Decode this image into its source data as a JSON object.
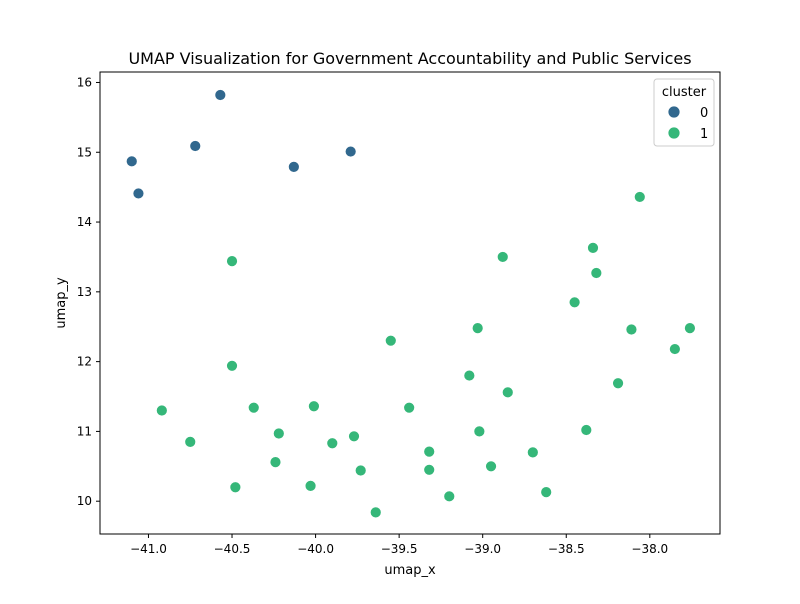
{
  "chart_data": {
    "type": "scatter",
    "title": "UMAP Visualization for Government Accountability and Public Services",
    "xlabel": "umap_x",
    "ylabel": "umap_y",
    "xlim": [
      -41.29,
      -37.58
    ],
    "ylim": [
      9.53,
      16.15
    ],
    "xticks": [
      -41.0,
      -40.5,
      -40.0,
      -39.5,
      -39.0,
      -38.5,
      -38.0
    ],
    "xtick_labels": [
      "−41.0",
      "−40.5",
      "−40.0",
      "−39.5",
      "−39.0",
      "−38.5",
      "−38.0"
    ],
    "yticks": [
      10,
      11,
      12,
      13,
      14,
      15,
      16
    ],
    "ytick_labels": [
      "10",
      "11",
      "12",
      "13",
      "14",
      "15",
      "16"
    ],
    "grid": false,
    "legend": {
      "title": "cluster",
      "placement": "top-right"
    },
    "series": [
      {
        "name": "0",
        "color": "#31688e",
        "points": [
          [
            -41.1,
            14.87
          ],
          [
            -41.06,
            14.41
          ],
          [
            -40.72,
            15.09
          ],
          [
            -40.57,
            15.82
          ],
          [
            -40.13,
            14.79
          ],
          [
            -39.79,
            15.01
          ]
        ]
      },
      {
        "name": "1",
        "color": "#35b779",
        "points": [
          [
            -40.92,
            11.3
          ],
          [
            -40.75,
            10.85
          ],
          [
            -40.5,
            13.44
          ],
          [
            -40.5,
            11.94
          ],
          [
            -40.48,
            10.2
          ],
          [
            -40.37,
            11.34
          ],
          [
            -40.24,
            10.56
          ],
          [
            -40.22,
            10.97
          ],
          [
            -40.01,
            11.36
          ],
          [
            -40.03,
            10.22
          ],
          [
            -39.9,
            10.83
          ],
          [
            -39.77,
            10.93
          ],
          [
            -39.73,
            10.44
          ],
          [
            -39.64,
            9.84
          ],
          [
            -39.55,
            12.3
          ],
          [
            -39.44,
            11.34
          ],
          [
            -39.32,
            10.71
          ],
          [
            -39.32,
            10.45
          ],
          [
            -39.2,
            10.07
          ],
          [
            -39.08,
            11.8
          ],
          [
            -39.03,
            12.48
          ],
          [
            -39.02,
            11.0
          ],
          [
            -38.95,
            10.5
          ],
          [
            -38.88,
            13.5
          ],
          [
            -38.85,
            11.56
          ],
          [
            -38.7,
            10.7
          ],
          [
            -38.62,
            10.13
          ],
          [
            -38.45,
            12.85
          ],
          [
            -38.38,
            11.02
          ],
          [
            -38.34,
            13.63
          ],
          [
            -38.32,
            13.27
          ],
          [
            -38.19,
            11.69
          ],
          [
            -38.11,
            12.46
          ],
          [
            -38.06,
            14.36
          ],
          [
            -37.85,
            12.18
          ],
          [
            -37.76,
            12.48
          ]
        ]
      }
    ]
  }
}
